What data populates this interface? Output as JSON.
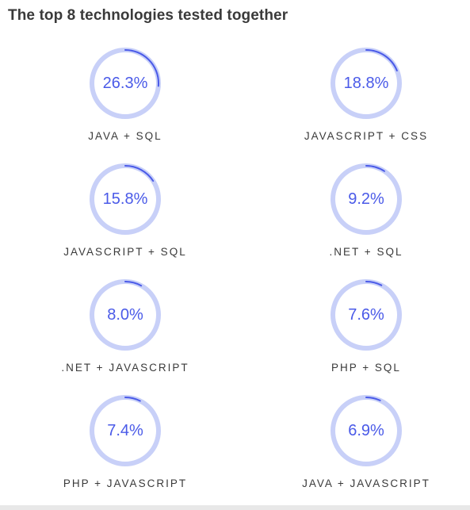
{
  "title": "The top 8 technologies tested together",
  "colors": {
    "ring_track": "#c8d0f8",
    "ring_arc": "#4a5ae8",
    "percent_text": "#4a5ae8",
    "label_text": "#3a3a3a"
  },
  "chart_data": {
    "type": "donut-grid",
    "title": "The top 8 technologies tested together",
    "items": [
      {
        "label": "JAVA + SQL",
        "value": 26.3,
        "display": "26.3%"
      },
      {
        "label": "JAVASCRIPT + CSS",
        "value": 18.8,
        "display": "18.8%"
      },
      {
        "label": "JAVASCRIPT + SQL",
        "value": 15.8,
        "display": "15.8%"
      },
      {
        "label": ".NET + SQL",
        "value": 9.2,
        "display": "9.2%"
      },
      {
        "label": ".NET + JAVASCRIPT",
        "value": 8.0,
        "display": "8.0%"
      },
      {
        "label": "PHP + SQL",
        "value": 7.6,
        "display": "7.6%"
      },
      {
        "label": "PHP + JAVASCRIPT",
        "value": 7.4,
        "display": "7.4%"
      },
      {
        "label": "JAVA + JAVASCRIPT",
        "value": 6.9,
        "display": "6.9%"
      }
    ]
  }
}
